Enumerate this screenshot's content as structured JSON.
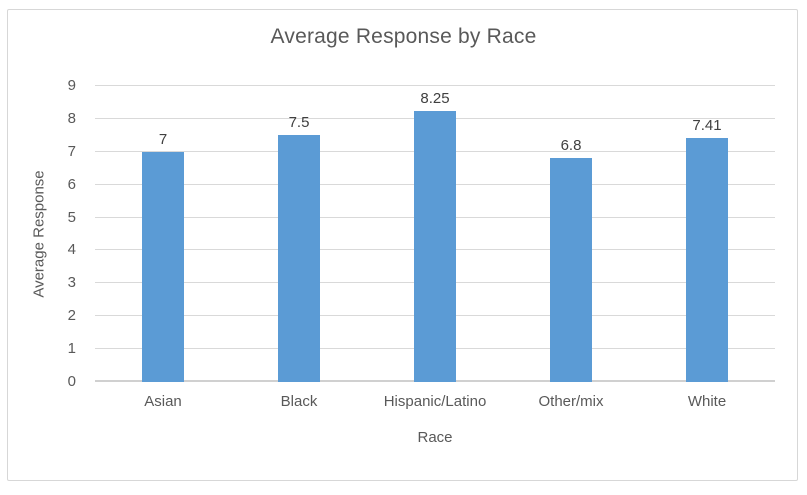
{
  "chart_data": {
    "type": "bar",
    "title": "Average Response by Race",
    "xlabel": "Race",
    "ylabel": "Average Response",
    "categories": [
      "Asian",
      "Black",
      "Hispanic/Latino",
      "Other/mix",
      "White"
    ],
    "values": [
      7,
      7.5,
      8.25,
      6.8,
      7.41
    ],
    "data_labels": [
      "7",
      "7.5",
      "8.25",
      "6.8",
      "7.41"
    ],
    "ylim": [
      0,
      9
    ],
    "yticks": [
      0,
      1,
      2,
      3,
      4,
      5,
      6,
      7,
      8,
      9
    ],
    "grid": true,
    "legend": "none",
    "colors": {
      "bar": "#5B9BD5",
      "gridline": "#D9D9D9",
      "axis_line": "#D0D0D0",
      "title_text": "#595959",
      "axis_text": "#595959",
      "data_label_text": "#404040",
      "chart_border": "#D7D7D7",
      "background": "#FFFFFF"
    }
  }
}
